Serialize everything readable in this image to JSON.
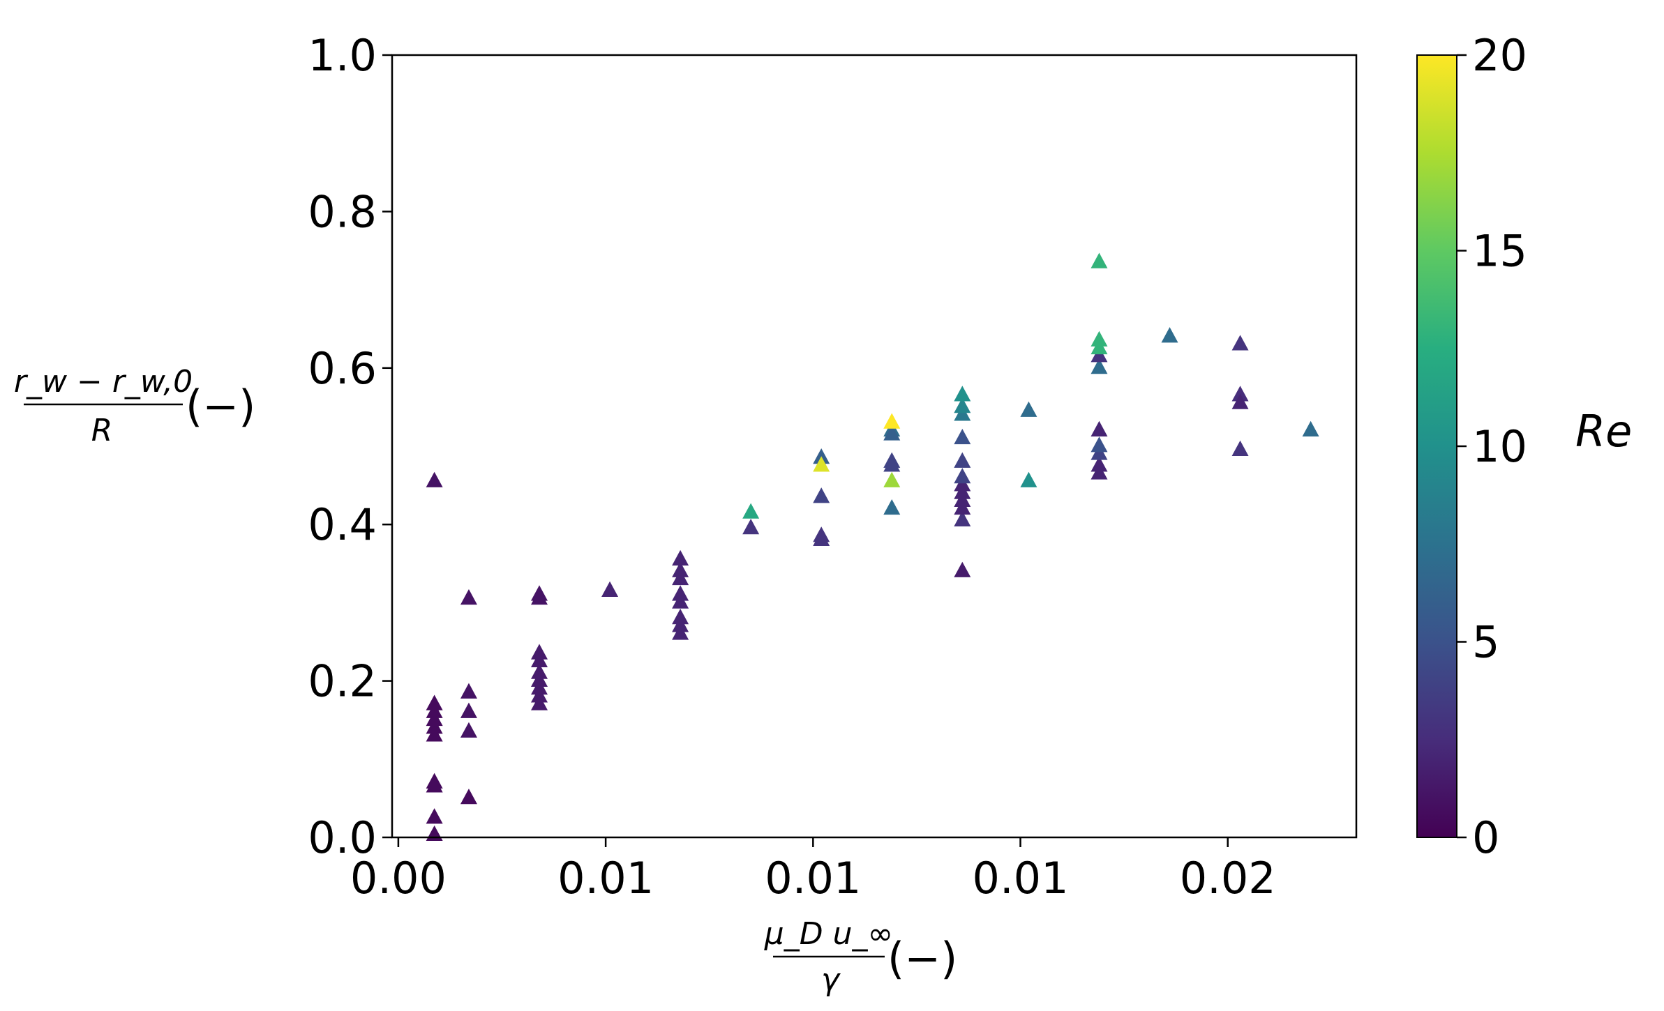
{
  "chart_data": {
    "type": "scatter",
    "title": "",
    "marker": "triangle",
    "colormap": "viridis",
    "xlabel": {
      "numerator": "μ_D u_∞",
      "denominator": "γ",
      "unit": "(−)"
    },
    "ylabel": {
      "numerator": "r_w − r_w,0",
      "denominator": "R",
      "unit": "(−)"
    },
    "xlim": [
      -0.00015,
      0.0231
    ],
    "ylim": [
      0,
      1.0
    ],
    "xticks": [
      0.0,
      0.005,
      0.01,
      0.015,
      0.02
    ],
    "xtick_labels": [
      "0.00",
      "0.01",
      "0.01",
      "0.01",
      "0.02"
    ],
    "yticks": [
      0.0,
      0.2,
      0.4,
      0.6,
      0.8,
      1.0
    ],
    "ytick_labels": [
      "0.0",
      "0.2",
      "0.4",
      "0.6",
      "0.8",
      "1.0"
    ],
    "colorbar": {
      "label": "Re",
      "range": [
        0,
        20
      ],
      "ticks": [
        0,
        5,
        10,
        15,
        20
      ],
      "tick_labels": [
        "0",
        "5",
        "10",
        "15",
        "20"
      ]
    },
    "points": [
      [
        0.00087,
        0.455,
        1
      ],
      [
        0.00087,
        0.17,
        0.5
      ],
      [
        0.00087,
        0.16,
        0.5
      ],
      [
        0.00087,
        0.15,
        0.5
      ],
      [
        0.00087,
        0.14,
        0.5
      ],
      [
        0.00087,
        0.13,
        0.5
      ],
      [
        0.00087,
        0.07,
        0.5
      ],
      [
        0.00087,
        0.065,
        0.5
      ],
      [
        0.00087,
        0.025,
        0.5
      ],
      [
        0.00087,
        0.003,
        0.5
      ],
      [
        0.0017,
        0.305,
        1
      ],
      [
        0.0017,
        0.185,
        1
      ],
      [
        0.0017,
        0.16,
        1
      ],
      [
        0.0017,
        0.135,
        1
      ],
      [
        0.0017,
        0.05,
        0.5
      ],
      [
        0.0034,
        0.31,
        1
      ],
      [
        0.0034,
        0.305,
        1
      ],
      [
        0.0034,
        0.235,
        1.5
      ],
      [
        0.0034,
        0.225,
        1.5
      ],
      [
        0.0034,
        0.21,
        1.5
      ],
      [
        0.0034,
        0.2,
        1.5
      ],
      [
        0.0034,
        0.19,
        1.5
      ],
      [
        0.0034,
        0.18,
        1.5
      ],
      [
        0.0034,
        0.17,
        1.5
      ],
      [
        0.0051,
        0.315,
        2
      ],
      [
        0.0068,
        0.355,
        2
      ],
      [
        0.0068,
        0.34,
        2
      ],
      [
        0.0068,
        0.33,
        2
      ],
      [
        0.0068,
        0.31,
        2
      ],
      [
        0.0068,
        0.3,
        2
      ],
      [
        0.0068,
        0.28,
        2
      ],
      [
        0.0068,
        0.27,
        2
      ],
      [
        0.0068,
        0.26,
        2
      ],
      [
        0.0085,
        0.395,
        3
      ],
      [
        0.0085,
        0.415,
        12
      ],
      [
        0.0102,
        0.485,
        6
      ],
      [
        0.0102,
        0.475,
        19
      ],
      [
        0.0102,
        0.435,
        4
      ],
      [
        0.0102,
        0.385,
        3
      ],
      [
        0.0102,
        0.38,
        3
      ],
      [
        0.0119,
        0.52,
        7
      ],
      [
        0.0119,
        0.515,
        6
      ],
      [
        0.0119,
        0.53,
        20
      ],
      [
        0.0119,
        0.48,
        4
      ],
      [
        0.0119,
        0.475,
        4
      ],
      [
        0.0119,
        0.455,
        17
      ],
      [
        0.0119,
        0.42,
        7
      ],
      [
        0.0136,
        0.405,
        3
      ],
      [
        0.0136,
        0.42,
        2
      ],
      [
        0.0136,
        0.43,
        2
      ],
      [
        0.0136,
        0.44,
        2
      ],
      [
        0.0136,
        0.45,
        2
      ],
      [
        0.0136,
        0.46,
        4
      ],
      [
        0.0136,
        0.48,
        4
      ],
      [
        0.0136,
        0.51,
        5
      ],
      [
        0.0136,
        0.54,
        8
      ],
      [
        0.0136,
        0.55,
        9
      ],
      [
        0.0136,
        0.565,
        10
      ],
      [
        0.0136,
        0.34,
        1.5
      ],
      [
        0.0152,
        0.545,
        7
      ],
      [
        0.0152,
        0.455,
        10
      ],
      [
        0.0169,
        0.465,
        2
      ],
      [
        0.0169,
        0.475,
        2
      ],
      [
        0.0169,
        0.49,
        4
      ],
      [
        0.0169,
        0.5,
        5
      ],
      [
        0.0169,
        0.52,
        2
      ],
      [
        0.0169,
        0.6,
        7
      ],
      [
        0.0169,
        0.615,
        3
      ],
      [
        0.0169,
        0.625,
        13
      ],
      [
        0.0169,
        0.635,
        13
      ],
      [
        0.0169,
        0.735,
        13
      ],
      [
        0.0186,
        0.64,
        7
      ],
      [
        0.0203,
        0.63,
        3
      ],
      [
        0.0203,
        0.565,
        2.5
      ],
      [
        0.0203,
        0.555,
        2
      ],
      [
        0.0203,
        0.495,
        3
      ],
      [
        0.022,
        0.52,
        7
      ]
    ]
  }
}
